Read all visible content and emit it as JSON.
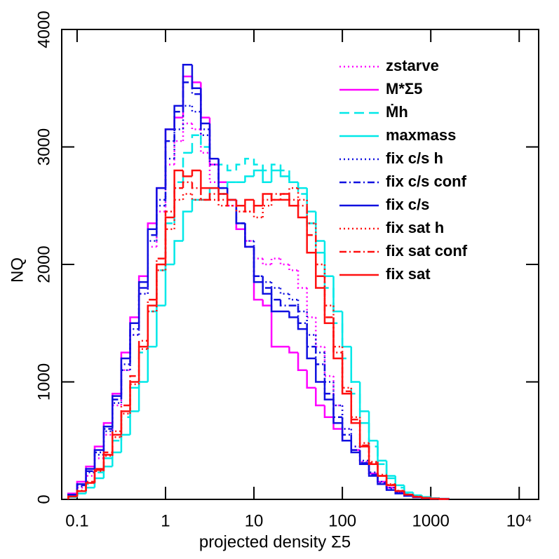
{
  "chart_data": {
    "type": "histogram",
    "xlabel": "projected density Σ5",
    "ylabel": "NQ",
    "xscale": "log",
    "xlim": [
      0.067,
      16600
    ],
    "ylim": [
      0,
      4000
    ],
    "xticks": [
      0.1,
      1,
      10,
      100,
      1000,
      {
        "value": 10000,
        "label": "10⁴"
      }
    ],
    "yticks": [
      0,
      1000,
      2000,
      3000,
      4000
    ],
    "bins": [
      0.0794,
      0.1,
      0.126,
      0.158,
      0.2,
      0.251,
      0.316,
      0.398,
      0.501,
      0.631,
      0.794,
      1,
      1.26,
      1.58,
      2,
      2.51,
      3.16,
      3.98,
      5.01,
      6.31,
      7.94,
      10,
      12.6,
      15.8,
      20,
      25.1,
      31.6,
      39.8,
      50.1,
      63.1,
      79.4,
      100,
      126,
      158,
      200,
      251,
      316,
      398,
      501,
      631,
      794,
      1000,
      1260,
      1585
    ],
    "series": [
      {
        "name": "zstarve",
        "color": "#ff00ff",
        "style": "dotted",
        "values": [
          30,
          100,
          200,
          350,
          550,
          800,
          1100,
          1400,
          1750,
          2150,
          2450,
          2850,
          3050,
          3200,
          3150,
          2950,
          2700,
          2600,
          2500,
          2300,
          2200,
          2050,
          2000,
          2050,
          2000,
          1950,
          1800,
          1550,
          1300,
          1050,
          800,
          600,
          450,
          320,
          220,
          150,
          100,
          60,
          35,
          20,
          12,
          6,
          3
        ]
      },
      {
        "name": "M*Σ5",
        "color": "#ff00ff",
        "style": "solid",
        "values": [
          50,
          150,
          280,
          450,
          650,
          900,
          1250,
          1550,
          1900,
          2350,
          2650,
          3150,
          3250,
          3600,
          3550,
          3250,
          2850,
          2700,
          2550,
          2300,
          2150,
          1700,
          1650,
          1300,
          1300,
          1250,
          1100,
          950,
          800,
          700,
          600,
          500,
          420,
          300,
          220,
          150,
          100,
          60,
          40,
          25,
          15,
          8,
          5
        ]
      },
      {
        "name": "Ṁh",
        "color": "#00e8e8",
        "style": "dashed",
        "values": [
          30,
          70,
          130,
          230,
          350,
          500,
          700,
          950,
          1250,
          1600,
          1950,
          2350,
          2700,
          2950,
          3100,
          3000,
          2900,
          2850,
          2800,
          2850,
          2900,
          2850,
          2800,
          2850,
          2800,
          2700,
          2600,
          2350,
          2100,
          1800,
          1500,
          1200,
          900,
          650,
          450,
          300,
          180,
          100,
          55,
          30,
          18,
          10,
          5
        ]
      },
      {
        "name": "maxmass",
        "color": "#00e8e8",
        "style": "solid",
        "values": [
          20,
          50,
          100,
          180,
          280,
          400,
          550,
          750,
          1000,
          1300,
          1650,
          2000,
          2200,
          2450,
          2550,
          2550,
          2650,
          2600,
          2700,
          2700,
          2750,
          2800,
          2700,
          2800,
          2750,
          2700,
          2650,
          2450,
          2200,
          1900,
          1600,
          1300,
          1000,
          750,
          500,
          330,
          200,
          120,
          60,
          35,
          20,
          10,
          5
        ]
      },
      {
        "name": "fix c/s h",
        "color": "#1010e0",
        "style": "dotted",
        "values": [
          35,
          110,
          230,
          380,
          580,
          820,
          1100,
          1400,
          1750,
          2200,
          2500,
          2900,
          3150,
          3350,
          3300,
          3100,
          2850,
          2600,
          2550,
          2350,
          2200,
          1900,
          1850,
          1800,
          1750,
          1700,
          1600,
          1400,
          1250,
          1000,
          800,
          600,
          450,
          330,
          230,
          150,
          100,
          60,
          35,
          20,
          12,
          6,
          3
        ]
      },
      {
        "name": "fix c/s conf",
        "color": "#1010e0",
        "style": "dashdot",
        "values": [
          35,
          120,
          240,
          400,
          600,
          850,
          1150,
          1450,
          1800,
          2250,
          2550,
          3050,
          3300,
          3550,
          3450,
          3150,
          2900,
          2650,
          2550,
          2350,
          2150,
          1900,
          1800,
          1700,
          1650,
          1650,
          1500,
          1300,
          1150,
          900,
          700,
          550,
          420,
          310,
          210,
          140,
          90,
          55,
          32,
          19,
          11,
          5,
          3
        ]
      },
      {
        "name": "fix c/s",
        "color": "#1010e0",
        "style": "solid",
        "values": [
          40,
          130,
          260,
          420,
          620,
          880,
          1200,
          1500,
          1850,
          2300,
          2650,
          3150,
          3350,
          3700,
          3500,
          3200,
          2900,
          2650,
          2550,
          2350,
          2150,
          1850,
          1750,
          1600,
          1600,
          1550,
          1450,
          1200,
          1000,
          850,
          650,
          500,
          400,
          300,
          200,
          130,
          80,
          50,
          30,
          18,
          10,
          5,
          3
        ]
      },
      {
        "name": "fix sat h",
        "color": "#ff1010",
        "style": "dotted",
        "values": [
          25,
          70,
          140,
          240,
          370,
          530,
          730,
          980,
          1280,
          1600,
          1950,
          2300,
          2550,
          2600,
          2550,
          2550,
          2550,
          2500,
          2500,
          2450,
          2450,
          2400,
          2500,
          2550,
          2600,
          2650,
          2550,
          2350,
          2000,
          1650,
          1300,
          950,
          700,
          480,
          320,
          210,
          130,
          75,
          42,
          24,
          13,
          7,
          3
        ]
      },
      {
        "name": "fix sat conf",
        "color": "#ff1010",
        "style": "dashdot",
        "values": [
          25,
          75,
          150,
          260,
          400,
          580,
          800,
          1050,
          1350,
          1700,
          2050,
          2450,
          2650,
          2700,
          2650,
          2550,
          2600,
          2550,
          2500,
          2500,
          2450,
          2500,
          2550,
          2600,
          2600,
          2550,
          2500,
          2250,
          1900,
          1550,
          1250,
          920,
          680,
          460,
          310,
          200,
          125,
          72,
          41,
          23,
          12,
          6,
          3
        ]
      },
      {
        "name": "fix sat",
        "color": "#ff1010",
        "style": "solid",
        "values": [
          25,
          70,
          140,
          250,
          380,
          550,
          750,
          1000,
          1300,
          1650,
          2000,
          2400,
          2800,
          2750,
          2800,
          2650,
          2650,
          2600,
          2550,
          2500,
          2550,
          2500,
          2600,
          2550,
          2550,
          2500,
          2400,
          2100,
          1800,
          1500,
          1200,
          900,
          650,
          450,
          300,
          200,
          120,
          70,
          40,
          22,
          12,
          6,
          3
        ]
      }
    ]
  }
}
